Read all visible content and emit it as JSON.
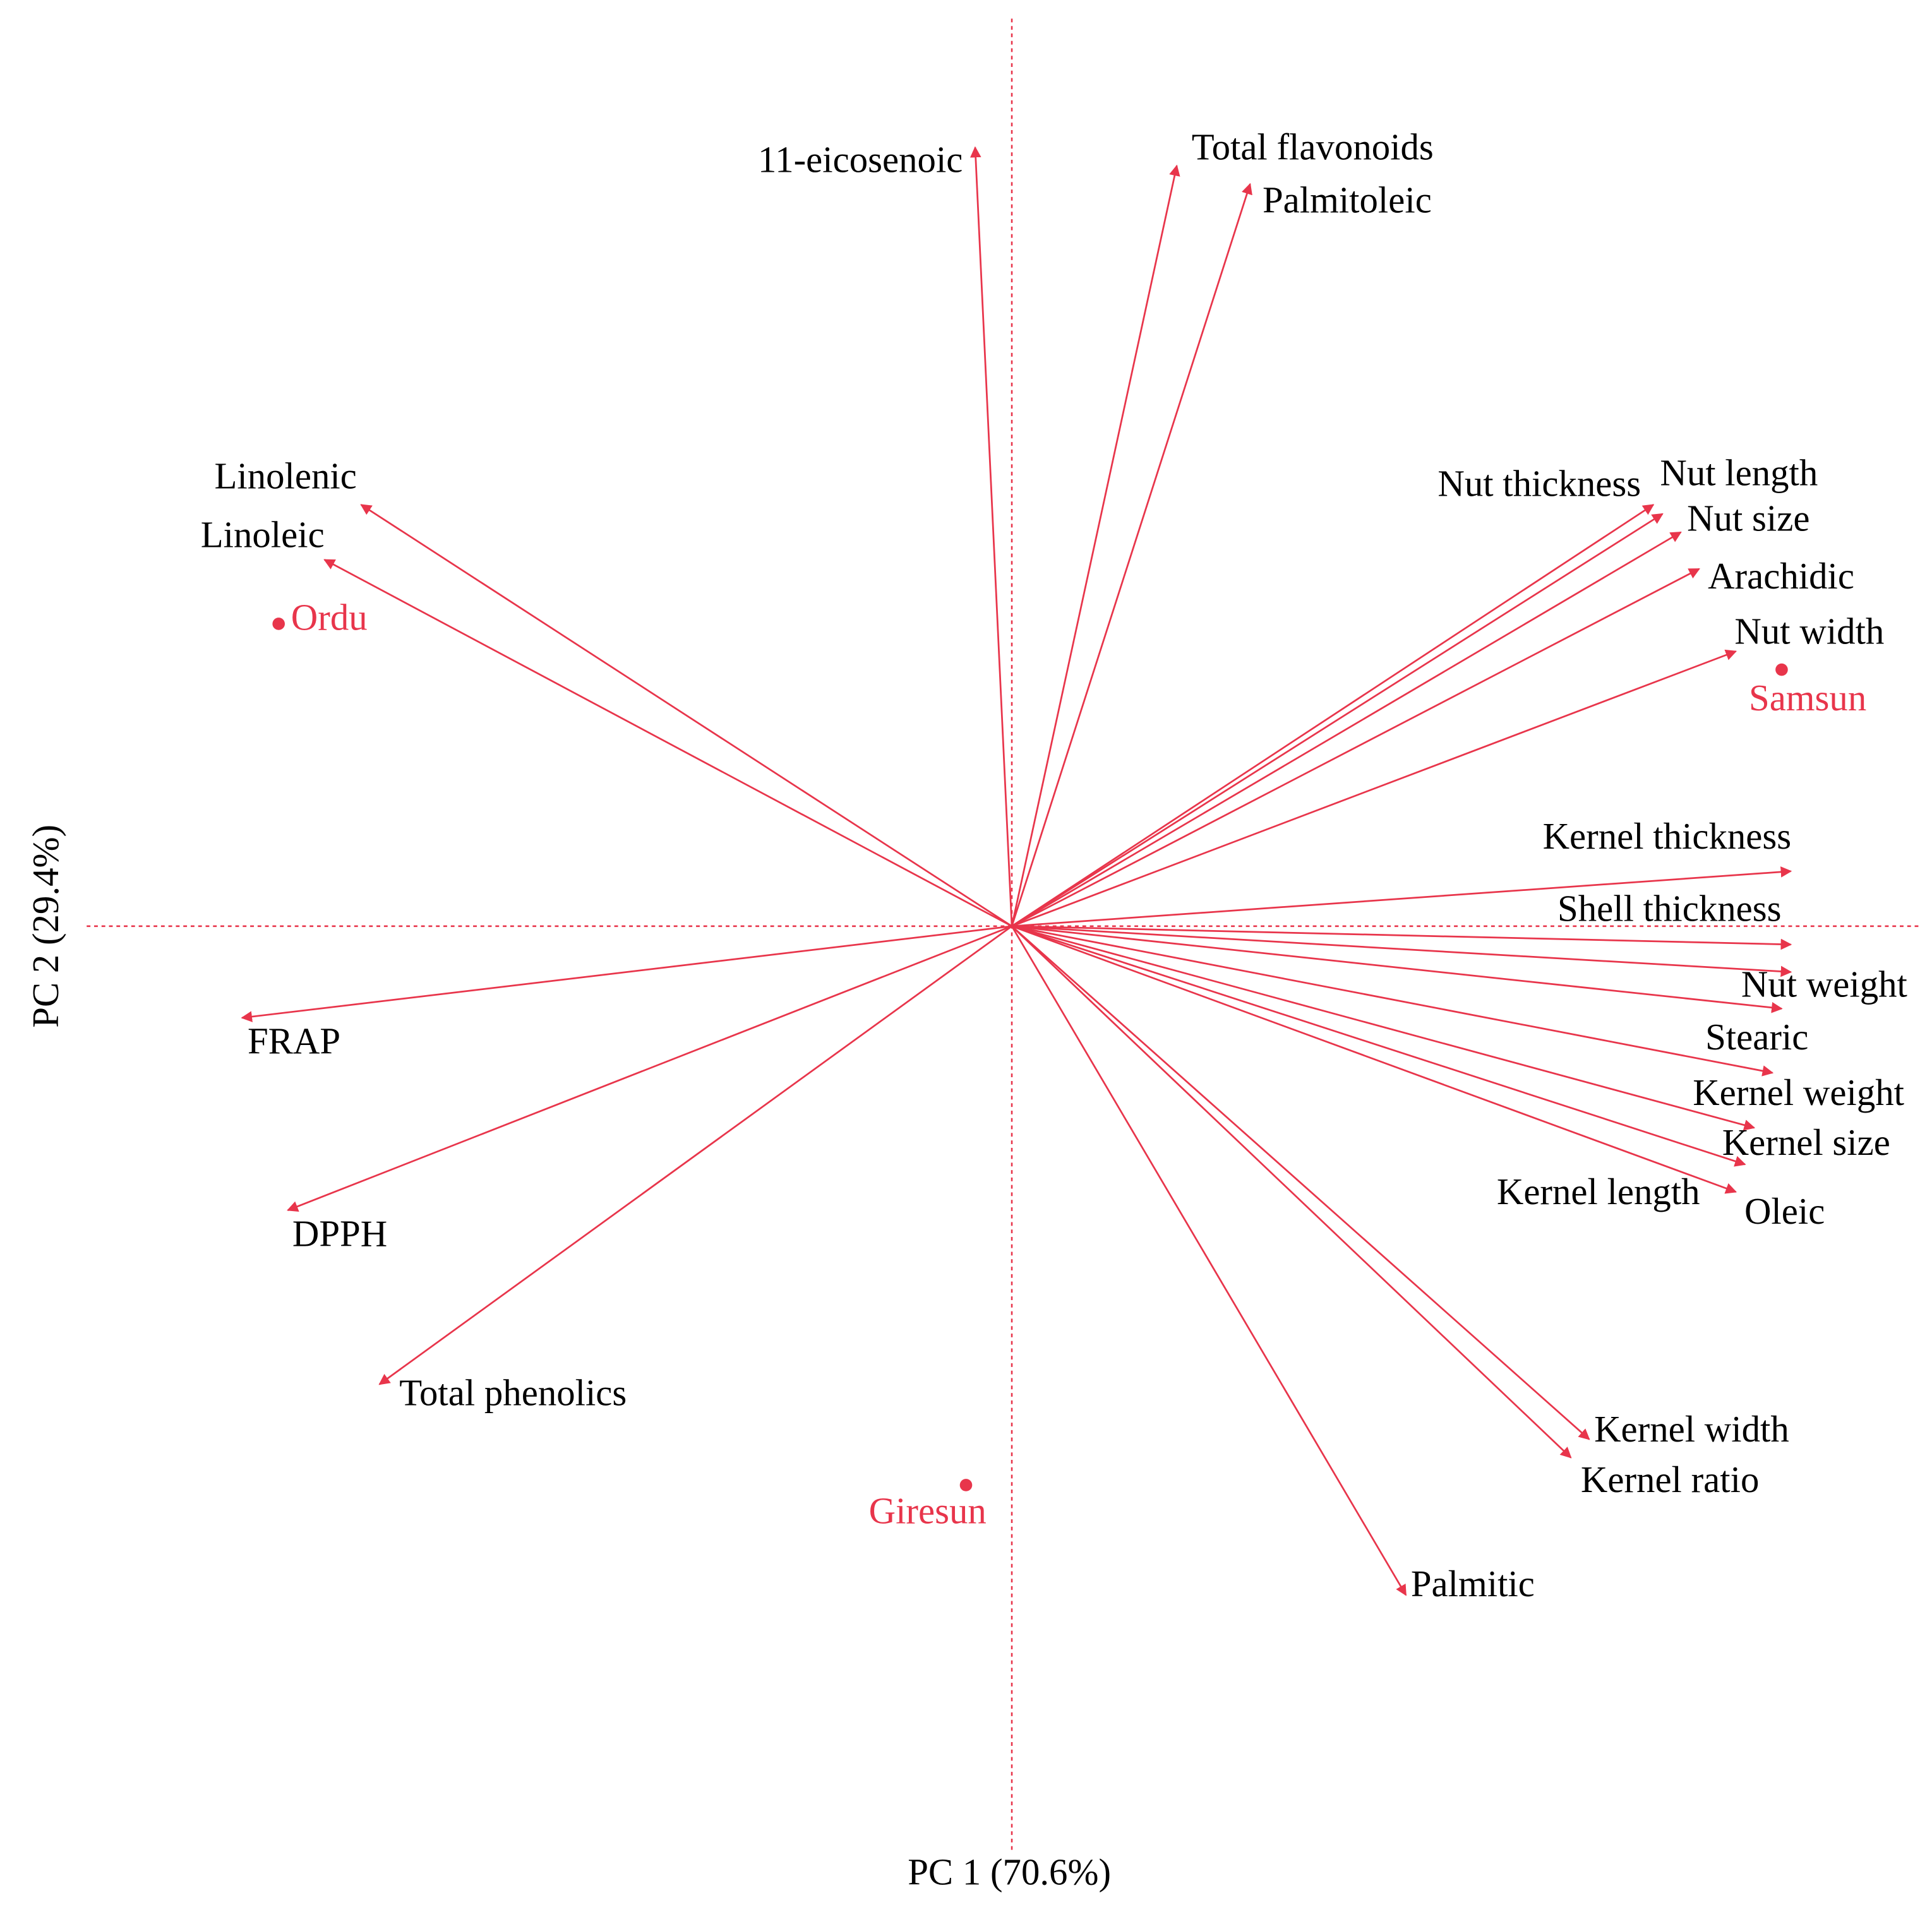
{
  "chart_data": {
    "type": "biplot",
    "x_label": "PC 1  (70.6%)",
    "y_label": "PC 2  (29.4%)",
    "xlim": [
      -1,
      1
    ],
    "ylim": [
      -1,
      1
    ],
    "loading_color": "#e8354b",
    "score_color": "#e8354b",
    "loadings": {
      "names": [
        "11-eicosenoic",
        "Total flavonoids",
        "Palmitoleic",
        "Linolenic",
        "Linoleic",
        "Nut thickness",
        "Nut length",
        "Nut size",
        "Arachidic",
        "Nut width",
        "Kernel thickness",
        "Shell thickness",
        "Nut weight",
        "Stearic",
        "Kernel weight",
        "Kernel size",
        "Oleic",
        "Kernel length",
        "Kernel width",
        "Kernel ratio",
        "Palmitic",
        "FRAP",
        "DPPH",
        "Total phenolics"
      ],
      "x": [
        -0.04,
        0.18,
        0.26,
        -0.71,
        -0.75,
        0.7,
        0.71,
        0.73,
        0.75,
        0.79,
        0.85,
        0.85,
        0.85,
        0.84,
        0.83,
        0.81,
        0.8,
        0.79,
        0.63,
        0.61,
        0.43,
        -0.84,
        -0.79,
        -0.69
      ],
      "y": [
        0.85,
        0.83,
        0.81,
        0.46,
        0.4,
        0.46,
        0.45,
        0.43,
        0.39,
        0.3,
        0.06,
        -0.02,
        -0.05,
        -0.09,
        -0.16,
        -0.22,
        -0.26,
        -0.29,
        -0.56,
        -0.58,
        -0.73,
        -0.1,
        -0.31,
        -0.5
      ]
    },
    "scores": {
      "names": [
        "Ordu",
        "Samsun",
        "Giresun"
      ],
      "x": [
        -0.8,
        0.84,
        -0.05
      ],
      "y": [
        0.33,
        0.28,
        -0.61
      ]
    }
  }
}
